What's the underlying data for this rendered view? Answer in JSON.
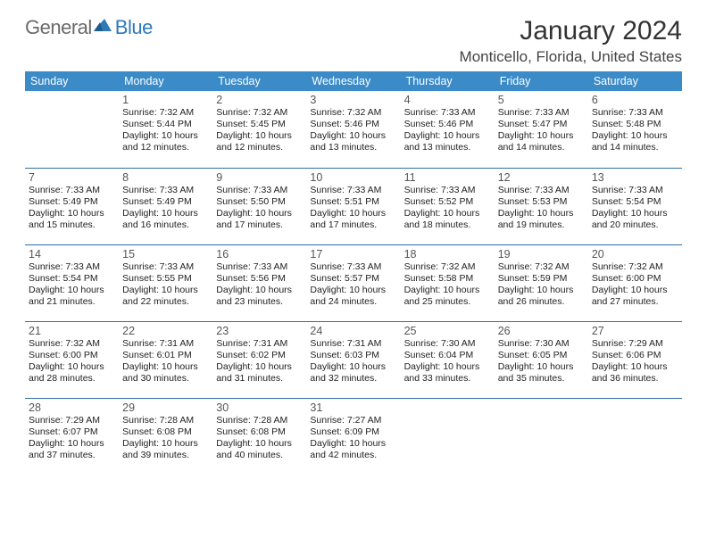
{
  "brand": {
    "general": "General",
    "blue": "Blue"
  },
  "header": {
    "month_title": "January 2024",
    "location": "Monticello, Florida, United States"
  },
  "style": {
    "header_bg": "#3b8bc9",
    "header_text": "#ffffff",
    "row_border": "#2f6fa3",
    "body_text": "#222222",
    "daynum_color": "#555555"
  },
  "days_of_week": [
    "Sunday",
    "Monday",
    "Tuesday",
    "Wednesday",
    "Thursday",
    "Friday",
    "Saturday"
  ],
  "weeks": [
    [
      null,
      {
        "n": "1",
        "sunrise": "Sunrise: 7:32 AM",
        "sunset": "Sunset: 5:44 PM",
        "d1": "Daylight: 10 hours",
        "d2": "and 12 minutes."
      },
      {
        "n": "2",
        "sunrise": "Sunrise: 7:32 AM",
        "sunset": "Sunset: 5:45 PM",
        "d1": "Daylight: 10 hours",
        "d2": "and 12 minutes."
      },
      {
        "n": "3",
        "sunrise": "Sunrise: 7:32 AM",
        "sunset": "Sunset: 5:46 PM",
        "d1": "Daylight: 10 hours",
        "d2": "and 13 minutes."
      },
      {
        "n": "4",
        "sunrise": "Sunrise: 7:33 AM",
        "sunset": "Sunset: 5:46 PM",
        "d1": "Daylight: 10 hours",
        "d2": "and 13 minutes."
      },
      {
        "n": "5",
        "sunrise": "Sunrise: 7:33 AM",
        "sunset": "Sunset: 5:47 PM",
        "d1": "Daylight: 10 hours",
        "d2": "and 14 minutes."
      },
      {
        "n": "6",
        "sunrise": "Sunrise: 7:33 AM",
        "sunset": "Sunset: 5:48 PM",
        "d1": "Daylight: 10 hours",
        "d2": "and 14 minutes."
      }
    ],
    [
      {
        "n": "7",
        "sunrise": "Sunrise: 7:33 AM",
        "sunset": "Sunset: 5:49 PM",
        "d1": "Daylight: 10 hours",
        "d2": "and 15 minutes."
      },
      {
        "n": "8",
        "sunrise": "Sunrise: 7:33 AM",
        "sunset": "Sunset: 5:49 PM",
        "d1": "Daylight: 10 hours",
        "d2": "and 16 minutes."
      },
      {
        "n": "9",
        "sunrise": "Sunrise: 7:33 AM",
        "sunset": "Sunset: 5:50 PM",
        "d1": "Daylight: 10 hours",
        "d2": "and 17 minutes."
      },
      {
        "n": "10",
        "sunrise": "Sunrise: 7:33 AM",
        "sunset": "Sunset: 5:51 PM",
        "d1": "Daylight: 10 hours",
        "d2": "and 17 minutes."
      },
      {
        "n": "11",
        "sunrise": "Sunrise: 7:33 AM",
        "sunset": "Sunset: 5:52 PM",
        "d1": "Daylight: 10 hours",
        "d2": "and 18 minutes."
      },
      {
        "n": "12",
        "sunrise": "Sunrise: 7:33 AM",
        "sunset": "Sunset: 5:53 PM",
        "d1": "Daylight: 10 hours",
        "d2": "and 19 minutes."
      },
      {
        "n": "13",
        "sunrise": "Sunrise: 7:33 AM",
        "sunset": "Sunset: 5:54 PM",
        "d1": "Daylight: 10 hours",
        "d2": "and 20 minutes."
      }
    ],
    [
      {
        "n": "14",
        "sunrise": "Sunrise: 7:33 AM",
        "sunset": "Sunset: 5:54 PM",
        "d1": "Daylight: 10 hours",
        "d2": "and 21 minutes."
      },
      {
        "n": "15",
        "sunrise": "Sunrise: 7:33 AM",
        "sunset": "Sunset: 5:55 PM",
        "d1": "Daylight: 10 hours",
        "d2": "and 22 minutes."
      },
      {
        "n": "16",
        "sunrise": "Sunrise: 7:33 AM",
        "sunset": "Sunset: 5:56 PM",
        "d1": "Daylight: 10 hours",
        "d2": "and 23 minutes."
      },
      {
        "n": "17",
        "sunrise": "Sunrise: 7:33 AM",
        "sunset": "Sunset: 5:57 PM",
        "d1": "Daylight: 10 hours",
        "d2": "and 24 minutes."
      },
      {
        "n": "18",
        "sunrise": "Sunrise: 7:32 AM",
        "sunset": "Sunset: 5:58 PM",
        "d1": "Daylight: 10 hours",
        "d2": "and 25 minutes."
      },
      {
        "n": "19",
        "sunrise": "Sunrise: 7:32 AM",
        "sunset": "Sunset: 5:59 PM",
        "d1": "Daylight: 10 hours",
        "d2": "and 26 minutes."
      },
      {
        "n": "20",
        "sunrise": "Sunrise: 7:32 AM",
        "sunset": "Sunset: 6:00 PM",
        "d1": "Daylight: 10 hours",
        "d2": "and 27 minutes."
      }
    ],
    [
      {
        "n": "21",
        "sunrise": "Sunrise: 7:32 AM",
        "sunset": "Sunset: 6:00 PM",
        "d1": "Daylight: 10 hours",
        "d2": "and 28 minutes."
      },
      {
        "n": "22",
        "sunrise": "Sunrise: 7:31 AM",
        "sunset": "Sunset: 6:01 PM",
        "d1": "Daylight: 10 hours",
        "d2": "and 30 minutes."
      },
      {
        "n": "23",
        "sunrise": "Sunrise: 7:31 AM",
        "sunset": "Sunset: 6:02 PM",
        "d1": "Daylight: 10 hours",
        "d2": "and 31 minutes."
      },
      {
        "n": "24",
        "sunrise": "Sunrise: 7:31 AM",
        "sunset": "Sunset: 6:03 PM",
        "d1": "Daylight: 10 hours",
        "d2": "and 32 minutes."
      },
      {
        "n": "25",
        "sunrise": "Sunrise: 7:30 AM",
        "sunset": "Sunset: 6:04 PM",
        "d1": "Daylight: 10 hours",
        "d2": "and 33 minutes."
      },
      {
        "n": "26",
        "sunrise": "Sunrise: 7:30 AM",
        "sunset": "Sunset: 6:05 PM",
        "d1": "Daylight: 10 hours",
        "d2": "and 35 minutes."
      },
      {
        "n": "27",
        "sunrise": "Sunrise: 7:29 AM",
        "sunset": "Sunset: 6:06 PM",
        "d1": "Daylight: 10 hours",
        "d2": "and 36 minutes."
      }
    ],
    [
      {
        "n": "28",
        "sunrise": "Sunrise: 7:29 AM",
        "sunset": "Sunset: 6:07 PM",
        "d1": "Daylight: 10 hours",
        "d2": "and 37 minutes."
      },
      {
        "n": "29",
        "sunrise": "Sunrise: 7:28 AM",
        "sunset": "Sunset: 6:08 PM",
        "d1": "Daylight: 10 hours",
        "d2": "and 39 minutes."
      },
      {
        "n": "30",
        "sunrise": "Sunrise: 7:28 AM",
        "sunset": "Sunset: 6:08 PM",
        "d1": "Daylight: 10 hours",
        "d2": "and 40 minutes."
      },
      {
        "n": "31",
        "sunrise": "Sunrise: 7:27 AM",
        "sunset": "Sunset: 6:09 PM",
        "d1": "Daylight: 10 hours",
        "d2": "and 42 minutes."
      },
      null,
      null,
      null
    ]
  ]
}
